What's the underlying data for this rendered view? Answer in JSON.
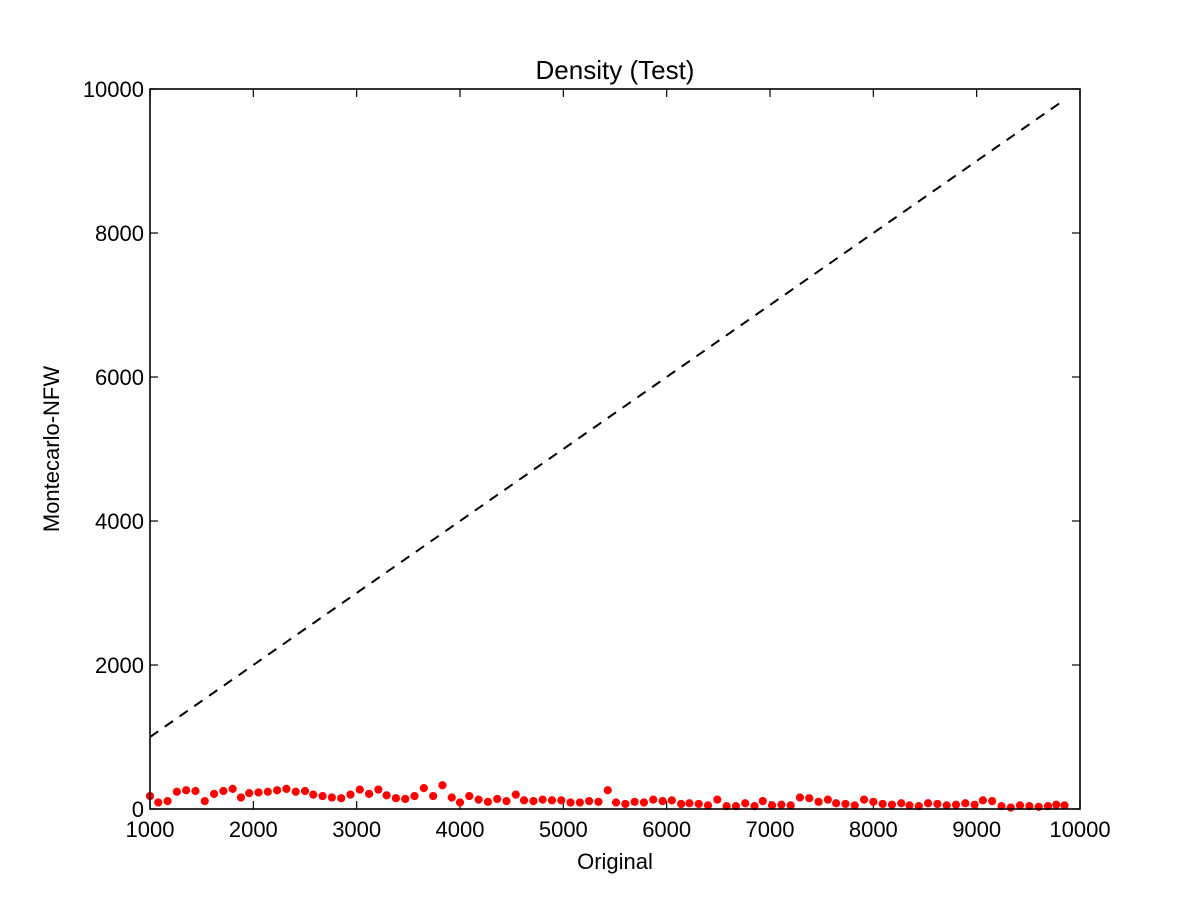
{
  "chart_data": {
    "type": "scatter",
    "title": "Density (Test)",
    "xlabel": "Original",
    "ylabel": "Montecarlo-NFW",
    "xlim": [
      1000,
      10000
    ],
    "ylim": [
      0,
      10000
    ],
    "x_ticks": [
      "1000",
      "2000",
      "3000",
      "4000",
      "5000",
      "6000",
      "7000",
      "8000",
      "9000",
      "10000"
    ],
    "y_ticks": [
      "0",
      "2000",
      "4000",
      "6000",
      "8000",
      "10000"
    ],
    "grid": false,
    "legend": "none",
    "reference_line": {
      "style": "dashed",
      "color": "#000000",
      "points": [
        [
          1000,
          1000
        ],
        [
          9850,
          9850
        ]
      ]
    },
    "series": [
      {
        "color": "#ff0000",
        "x": [
          1000,
          1080,
          1170,
          1260,
          1350,
          1440,
          1530,
          1620,
          1710,
          1800,
          1880,
          1960,
          2050,
          2140,
          2230,
          2320,
          2410,
          2500,
          2580,
          2670,
          2760,
          2850,
          2940,
          3030,
          3120,
          3210,
          3290,
          3380,
          3470,
          3560,
          3650,
          3740,
          3830,
          3920,
          4000,
          4090,
          4180,
          4270,
          4360,
          4450,
          4540,
          4620,
          4710,
          4800,
          4890,
          4980,
          5070,
          5160,
          5250,
          5340,
          5430,
          5510,
          5600,
          5690,
          5780,
          5870,
          5960,
          6050,
          6140,
          6220,
          6310,
          6400,
          6490,
          6580,
          6670,
          6760,
          6850,
          6930,
          7020,
          7110,
          7200,
          7290,
          7380,
          7470,
          7560,
          7640,
          7730,
          7820,
          7910,
          8000,
          8090,
          8180,
          8270,
          8350,
          8440,
          8530,
          8620,
          8710,
          8800,
          8890,
          8980,
          9060,
          9150,
          9240,
          9330,
          9420,
          9510,
          9600,
          9690,
          9770,
          9850
        ],
        "y": [
          180,
          90,
          110,
          240,
          260,
          250,
          110,
          210,
          250,
          280,
          160,
          220,
          230,
          240,
          260,
          280,
          240,
          250,
          200,
          180,
          160,
          150,
          200,
          270,
          210,
          270,
          190,
          150,
          140,
          180,
          290,
          180,
          330,
          160,
          90,
          180,
          130,
          100,
          140,
          110,
          200,
          120,
          110,
          130,
          120,
          120,
          90,
          90,
          110,
          100,
          260,
          90,
          70,
          100,
          90,
          130,
          110,
          120,
          70,
          80,
          70,
          50,
          130,
          40,
          40,
          80,
          40,
          110,
          50,
          60,
          50,
          160,
          150,
          100,
          130,
          80,
          70,
          50,
          130,
          100,
          70,
          60,
          80,
          50,
          40,
          80,
          70,
          50,
          60,
          80,
          60,
          120,
          110,
          40,
          20,
          50,
          40,
          30,
          40,
          60,
          50
        ]
      }
    ]
  }
}
